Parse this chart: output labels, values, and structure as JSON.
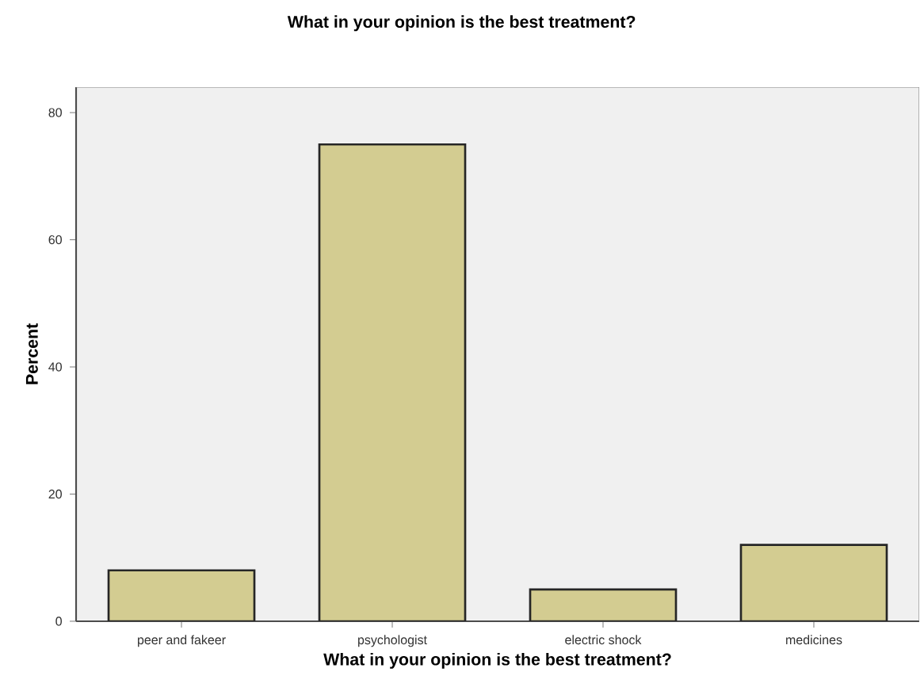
{
  "chart_data": {
    "type": "bar",
    "title": "What in your opinion is the best treatment?",
    "xlabel": "What in your opinion is the best treatment?",
    "ylabel": "Percent",
    "categories": [
      "peer and fakeer",
      "psychologist",
      "electric shock",
      "medicines"
    ],
    "values": [
      8,
      75,
      5,
      12
    ],
    "color": "#d3cc91",
    "ylim": [
      0,
      84
    ],
    "yticks": [
      0,
      20,
      40,
      60,
      80
    ],
    "grid": false
  }
}
